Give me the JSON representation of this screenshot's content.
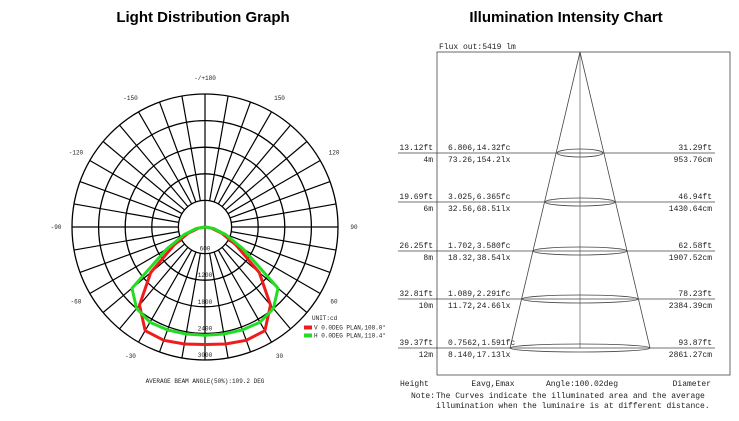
{
  "chart_data": {
    "type": "polar",
    "title": "Light Distribution Graph",
    "x": [
      -90,
      -80,
      -70,
      -60,
      -50,
      -40,
      -30,
      -20,
      -10,
      0,
      10,
      20,
      30,
      40,
      50,
      60,
      70,
      80,
      90
    ],
    "series": [
      {
        "name": "V 0.0DEG PLAN,108.0°",
        "color": "#ee1c1c",
        "values": [
          0,
          150,
          400,
          800,
          1600,
          2300,
          2700,
          2720,
          2680,
          2650,
          2680,
          2720,
          2700,
          2300,
          1600,
          800,
          400,
          150,
          0
        ]
      },
      {
        "name": "H 0.0DEG PLAN,110.4°",
        "color": "#22dd22",
        "values": [
          0,
          200,
          500,
          1000,
          2150,
          2400,
          2480,
          2470,
          2450,
          2440,
          2450,
          2470,
          2480,
          2400,
          2150,
          1000,
          500,
          200,
          0
        ]
      }
    ],
    "legend_title": "UNIT:cd",
    "rlim": [
      0,
      3000
    ],
    "rticks": [
      600,
      1200,
      1800,
      2400,
      3000
    ],
    "xticks": [
      {
        "value": 180,
        "label": "-/+180"
      },
      150,
      120,
      90,
      60,
      30,
      -30,
      -60,
      -90,
      -120,
      -150
    ],
    "footnote": "AVERAGE BEAM ANGLE(50%):109.2 DEG"
  },
  "illumination": {
    "title": "Illumination Intensity Chart",
    "flux": "Flux out:5419 lm",
    "rows": [
      [
        "13.12ft",
        "4m",
        "6.806,14.32fc",
        "73.26,154.2lx",
        "31.29ft",
        "953.76cm"
      ],
      [
        "19.69ft",
        "6m",
        "3.025,6.365fc",
        "32.56,68.51lx",
        "46.94ft",
        "1430.64cm"
      ],
      [
        "26.25ft",
        "8m",
        "1.702,3.580fc",
        "18.32,38.54lx",
        "62.58ft",
        "1907.52cm"
      ],
      [
        "32.81ft",
        "10m",
        "1.089,2.291fc",
        "11.72,24.66lx",
        "78.23ft",
        "2384.39cm"
      ],
      [
        "39.37ft",
        "12m",
        "0.7562,1.591fc",
        "8.140,17.13lx",
        "93.87ft",
        "2861.27cm"
      ]
    ],
    "headers": [
      "Height",
      "Eavg,Emax",
      "Angle:100.02deg",
      "Diameter"
    ],
    "note_label": "Note:",
    "note_lines": [
      "The Curves indicate the illuminated area and the average",
      "illumination when the luminaire is at different distance."
    ]
  }
}
